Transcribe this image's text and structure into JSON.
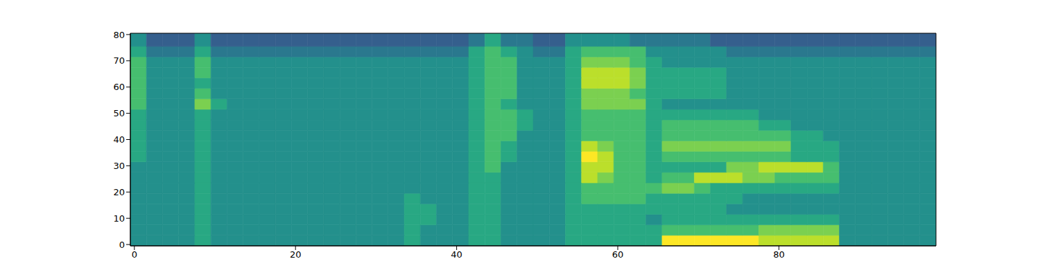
{
  "chart_data": {
    "type": "heatmap",
    "xlim": [
      -0.5,
      99.5
    ],
    "ylim": [
      -0.5,
      80.5
    ],
    "xticks": [
      0,
      20,
      40,
      60,
      80
    ],
    "yticks": [
      0,
      10,
      20,
      30,
      40,
      50,
      60,
      70,
      80
    ],
    "zlim": [
      0,
      10
    ],
    "x_edges": [
      -0.5,
      1.5,
      3.5,
      5.5,
      7.5,
      9.5,
      11.5,
      13.5,
      15.5,
      17.5,
      19.5,
      21.5,
      23.5,
      25.5,
      27.5,
      29.5,
      31.5,
      33.5,
      35.5,
      37.5,
      39.5,
      41.5,
      43.5,
      45.5,
      47.5,
      49.5,
      51.5,
      53.5,
      55.5,
      57.5,
      59.5,
      61.5,
      63.5,
      65.5,
      67.5,
      69.5,
      71.5,
      73.5,
      75.5,
      77.5,
      79.5,
      81.5,
      83.5,
      85.5,
      87.5,
      89.5,
      91.5,
      93.5,
      95.5,
      97.5,
      99.5
    ],
    "y_edges": [
      -0.5,
      3.5,
      7.5,
      11.5,
      15.5,
      19.5,
      23.5,
      27.5,
      31.5,
      35.5,
      39.5,
      43.5,
      47.5,
      51.5,
      55.5,
      59.5,
      63.5,
      67.5,
      71.5,
      75.5,
      80.5
    ],
    "cells": [
      [
        5,
        5,
        5,
        5,
        6,
        5,
        5,
        5,
        5,
        5,
        5,
        5,
        5,
        5,
        5,
        5,
        5,
        6,
        5,
        5,
        5,
        6,
        6,
        5,
        5,
        5,
        5,
        6,
        6,
        6,
        6,
        6,
        6,
        10,
        10,
        10,
        10,
        10,
        10,
        9,
        9,
        9,
        9,
        9,
        5,
        5,
        5,
        5,
        5,
        5
      ],
      [
        5,
        5,
        5,
        5,
        6,
        5,
        5,
        5,
        5,
        5,
        5,
        5,
        5,
        5,
        5,
        5,
        5,
        6,
        5,
        5,
        5,
        6,
        6,
        5,
        5,
        5,
        5,
        6,
        6,
        6,
        6,
        6,
        6,
        7,
        7,
        7,
        7,
        7,
        7,
        8,
        8,
        8,
        8,
        8,
        5,
        5,
        5,
        5,
        5,
        5
      ],
      [
        5,
        5,
        5,
        5,
        6,
        5,
        5,
        5,
        5,
        5,
        5,
        5,
        5,
        5,
        5,
        5,
        5,
        6,
        6,
        5,
        5,
        6,
        6,
        5,
        5,
        5,
        5,
        6,
        6,
        6,
        6,
        6,
        5,
        6,
        6,
        6,
        6,
        6,
        6,
        6,
        6,
        6,
        6,
        6,
        5,
        5,
        5,
        5,
        5,
        5
      ],
      [
        5,
        5,
        5,
        5,
        6,
        5,
        5,
        5,
        5,
        5,
        5,
        5,
        5,
        5,
        5,
        5,
        5,
        6,
        6,
        5,
        5,
        6,
        6,
        5,
        5,
        5,
        5,
        6,
        6,
        6,
        6,
        6,
        6,
        6,
        6,
        6,
        6,
        5,
        5,
        5,
        5,
        5,
        5,
        5,
        5,
        5,
        5,
        5,
        5,
        5
      ],
      [
        5,
        5,
        5,
        5,
        6,
        5,
        5,
        5,
        5,
        5,
        5,
        5,
        5,
        5,
        5,
        5,
        5,
        6,
        5,
        5,
        5,
        6,
        6,
        5,
        5,
        5,
        5,
        6,
        7,
        7,
        7,
        7,
        6,
        6,
        6,
        6,
        6,
        6,
        5,
        5,
        5,
        5,
        5,
        5,
        5,
        5,
        5,
        5,
        5,
        5
      ],
      [
        5,
        5,
        5,
        5,
        6,
        5,
        5,
        5,
        5,
        5,
        5,
        5,
        5,
        5,
        5,
        5,
        5,
        5,
        5,
        5,
        5,
        6,
        6,
        5,
        5,
        5,
        5,
        6,
        7,
        7,
        7,
        7,
        7,
        8,
        8,
        7,
        6,
        6,
        6,
        6,
        6,
        6,
        6,
        6,
        5,
        5,
        5,
        5,
        5,
        5
      ],
      [
        5,
        5,
        5,
        5,
        6,
        5,
        5,
        5,
        5,
        5,
        5,
        5,
        5,
        5,
        5,
        5,
        5,
        5,
        5,
        5,
        5,
        6,
        6,
        5,
        5,
        5,
        5,
        6,
        9,
        8,
        7,
        7,
        6,
        7,
        7,
        9,
        9,
        9,
        8,
        8,
        7,
        7,
        7,
        7,
        5,
        5,
        5,
        5,
        5,
        5
      ],
      [
        5,
        5,
        5,
        5,
        6,
        5,
        5,
        5,
        5,
        5,
        5,
        5,
        5,
        5,
        5,
        5,
        5,
        5,
        5,
        5,
        5,
        6,
        7,
        5,
        5,
        5,
        5,
        6,
        9,
        9,
        7,
        7,
        6,
        6,
        6,
        6,
        6,
        8,
        8,
        9,
        9,
        9,
        9,
        7,
        5,
        5,
        5,
        5,
        5,
        5
      ],
      [
        6,
        5,
        5,
        5,
        6,
        5,
        5,
        5,
        5,
        5,
        5,
        5,
        5,
        5,
        5,
        5,
        5,
        5,
        5,
        5,
        5,
        6,
        7,
        6,
        5,
        5,
        5,
        6,
        10,
        9,
        7,
        7,
        6,
        7,
        7,
        7,
        7,
        7,
        7,
        7,
        7,
        6,
        6,
        6,
        5,
        5,
        5,
        5,
        5,
        5
      ],
      [
        6,
        5,
        5,
        5,
        6,
        5,
        5,
        5,
        5,
        5,
        5,
        5,
        5,
        5,
        5,
        5,
        5,
        5,
        5,
        5,
        5,
        6,
        7,
        6,
        5,
        5,
        5,
        6,
        9,
        8,
        7,
        7,
        6,
        8,
        8,
        8,
        8,
        8,
        8,
        8,
        8,
        6,
        6,
        6,
        5,
        5,
        5,
        5,
        5,
        5
      ],
      [
        6,
        5,
        5,
        5,
        6,
        5,
        5,
        5,
        5,
        5,
        5,
        5,
        5,
        5,
        5,
        5,
        5,
        5,
        5,
        5,
        5,
        6,
        7,
        7,
        5,
        5,
        5,
        6,
        7,
        7,
        7,
        7,
        6,
        7,
        7,
        7,
        7,
        7,
        7,
        7,
        7,
        6,
        6,
        5,
        5,
        5,
        5,
        5,
        5,
        5
      ],
      [
        6,
        5,
        5,
        5,
        6,
        5,
        5,
        5,
        5,
        5,
        5,
        5,
        5,
        5,
        5,
        5,
        5,
        5,
        5,
        5,
        5,
        6,
        7,
        7,
        6,
        5,
        5,
        6,
        7,
        7,
        7,
        7,
        6,
        7,
        7,
        7,
        7,
        7,
        7,
        6,
        6,
        5,
        5,
        5,
        5,
        5,
        5,
        5,
        5,
        5
      ],
      [
        6,
        5,
        5,
        5,
        6,
        5,
        5,
        5,
        5,
        5,
        5,
        5,
        5,
        5,
        5,
        5,
        5,
        5,
        5,
        5,
        5,
        6,
        7,
        7,
        6,
        5,
        5,
        6,
        7,
        7,
        7,
        7,
        6,
        6,
        6,
        6,
        6,
        6,
        6,
        5,
        5,
        5,
        5,
        5,
        5,
        5,
        5,
        5,
        5,
        5
      ],
      [
        7,
        5,
        5,
        5,
        8,
        6,
        5,
        5,
        5,
        5,
        5,
        5,
        5,
        5,
        5,
        5,
        5,
        5,
        5,
        5,
        5,
        6,
        7,
        6,
        5,
        5,
        5,
        6,
        8,
        8,
        8,
        8,
        6,
        5,
        5,
        5,
        5,
        5,
        5,
        5,
        5,
        5,
        5,
        5,
        5,
        5,
        5,
        5,
        5,
        5
      ],
      [
        7,
        5,
        5,
        5,
        7,
        5,
        5,
        5,
        5,
        5,
        5,
        5,
        5,
        5,
        5,
        5,
        5,
        5,
        5,
        5,
        5,
        6,
        7,
        7,
        5,
        5,
        5,
        6,
        8,
        8,
        8,
        7,
        6,
        6,
        6,
        6,
        6,
        5,
        5,
        5,
        5,
        5,
        5,
        5,
        5,
        5,
        5,
        5,
        5,
        5
      ],
      [
        7,
        5,
        5,
        5,
        6,
        5,
        5,
        5,
        5,
        5,
        5,
        5,
        5,
        5,
        5,
        5,
        5,
        5,
        5,
        5,
        5,
        6,
        7,
        7,
        5,
        5,
        5,
        6,
        9,
        9,
        9,
        8,
        6,
        6,
        6,
        6,
        6,
        5,
        5,
        5,
        5,
        5,
        5,
        5,
        5,
        5,
        5,
        5,
        5,
        5
      ],
      [
        7,
        5,
        5,
        5,
        7,
        5,
        5,
        5,
        5,
        5,
        5,
        5,
        5,
        5,
        5,
        5,
        5,
        5,
        5,
        5,
        5,
        6,
        7,
        7,
        5,
        5,
        5,
        6,
        9,
        9,
        9,
        8,
        6,
        6,
        6,
        6,
        6,
        5,
        5,
        5,
        5,
        5,
        5,
        5,
        5,
        5,
        5,
        5,
        5,
        5
      ],
      [
        7,
        5,
        5,
        5,
        7,
        5,
        5,
        5,
        5,
        5,
        5,
        5,
        5,
        5,
        5,
        5,
        5,
        5,
        5,
        5,
        5,
        6,
        7,
        7,
        5,
        5,
        5,
        6,
        8,
        8,
        8,
        7,
        6,
        5,
        5,
        5,
        5,
        5,
        5,
        5,
        5,
        5,
        5,
        5,
        5,
        5,
        5,
        5,
        5,
        5
      ],
      [
        6,
        4,
        4,
        4,
        6,
        4,
        4,
        4,
        4,
        4,
        4,
        4,
        4,
        4,
        4,
        4,
        4,
        4,
        4,
        4,
        4,
        6,
        7,
        6,
        5,
        4,
        4,
        6,
        7,
        7,
        7,
        7,
        5,
        5,
        5,
        5,
        5,
        4,
        4,
        4,
        4,
        4,
        4,
        4,
        4,
        4,
        4,
        4,
        4,
        4
      ],
      [
        5,
        3,
        3,
        3,
        5,
        3,
        3,
        3,
        3,
        3,
        3,
        3,
        3,
        3,
        3,
        3,
        3,
        3,
        3,
        3,
        3,
        4,
        6,
        4,
        4,
        3,
        3,
        5,
        5,
        5,
        5,
        4,
        4,
        4,
        4,
        4,
        3,
        3,
        3,
        3,
        3,
        3,
        3,
        3,
        3,
        3,
        3,
        3,
        3,
        3
      ]
    ]
  }
}
